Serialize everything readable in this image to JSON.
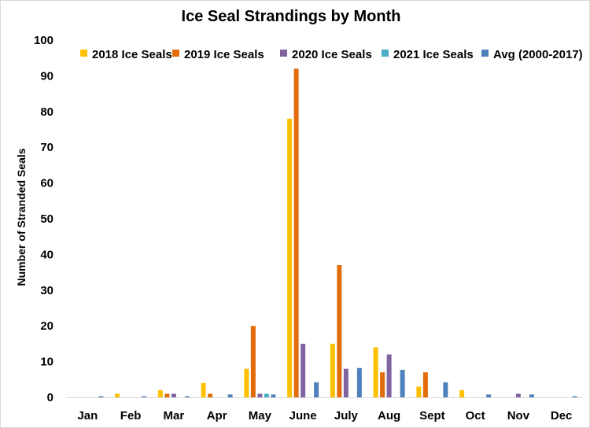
{
  "chart_data": {
    "type": "bar",
    "title": "Ice Seal Strandings by Month",
    "xlabel": "",
    "ylabel": "Number of Stranded  Seals",
    "ylim": [
      0,
      100
    ],
    "yticks": [
      0,
      10,
      20,
      30,
      40,
      50,
      60,
      70,
      80,
      90,
      100
    ],
    "grid": false,
    "legend_position": "top",
    "categories": [
      "Jan",
      "Feb",
      "Mar",
      "Apr",
      "May",
      "June",
      "July",
      "Aug",
      "Sept",
      "Oct",
      "Nov",
      "Dec"
    ],
    "series": [
      {
        "name": "2018 Ice Seals",
        "color": "#FFC000",
        "values": [
          0,
          1,
          2,
          4,
          8,
          78,
          15,
          14,
          3,
          2,
          0,
          0
        ]
      },
      {
        "name": "2019 Ice Seals",
        "color": "#E36C0A",
        "values": [
          0,
          0,
          1,
          1,
          20,
          92,
          37,
          7,
          7,
          0,
          0,
          0
        ]
      },
      {
        "name": "2020 Ice Seals",
        "color": "#8064A2",
        "values": [
          0,
          0,
          1,
          0,
          1,
          15,
          8,
          12,
          0,
          0,
          1,
          0
        ]
      },
      {
        "name": "2021 Ice Seals",
        "color": "#4BACC6",
        "values": [
          0,
          0,
          0,
          0,
          1,
          0,
          0,
          0,
          0,
          0,
          0,
          0
        ]
      },
      {
        "name": "Avg (2000-2017)",
        "color": "#4F81BD",
        "values": [
          0.3,
          0.3,
          0.3,
          0.8,
          0.8,
          4.2,
          8.2,
          7.7,
          4.2,
          0.8,
          0.8,
          0.3
        ]
      }
    ]
  }
}
